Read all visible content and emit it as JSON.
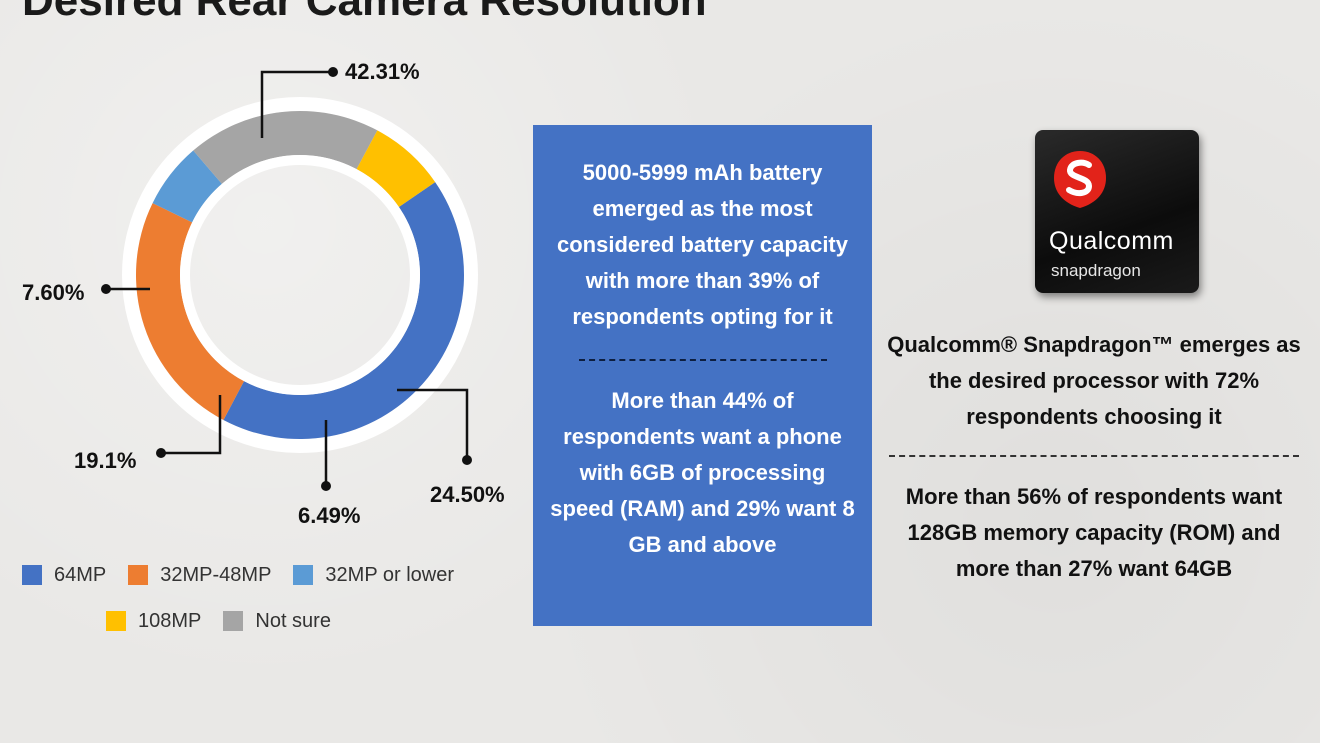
{
  "title": "Desired Rear Camera Resolution",
  "chart_data": {
    "type": "pie",
    "categories": [
      "64MP",
      "32MP-48MP",
      "32MP or lower",
      "Not sure",
      "108MP"
    ],
    "values": [
      42.31,
      24.5,
      6.49,
      19.1,
      7.6
    ],
    "value_labels": [
      "42.31%",
      "24.50%",
      "6.49%",
      "19.1%",
      "7.60%"
    ],
    "colors": [
      "#4472c4",
      "#ed7d31",
      "#5b9bd5",
      "#a5a5a5",
      "#ffc000"
    ],
    "legend": [
      "64MP",
      "32MP-48MP",
      "32MP or lower",
      "108MP",
      "Not sure"
    ],
    "legend_colors": [
      "#4472c4",
      "#ed7d31",
      "#5b9bd5",
      "#ffc000",
      "#a5a5a5"
    ],
    "legend_position": "bottom",
    "style": "donut"
  },
  "battery_box": {
    "text1": "5000-5999 mAh battery emerged as the most considered battery capacity with more than 39% of respondents opting for it",
    "text2": "More than 44% of respondents want a phone with 6GB of processing speed (RAM) and 29% want 8 GB and above"
  },
  "chip": {
    "brand": "Qualcomm",
    "sub": "snapdragon",
    "logo_icon": "snapdragon-logo-icon"
  },
  "processor": {
    "text1": "Qualcomm® Snapdragon™ emerges as the desired processor with 72% respondents choosing it",
    "text2": "More than 56% of respondents want 128GB memory capacity (ROM) and more than 27% want 64GB"
  }
}
